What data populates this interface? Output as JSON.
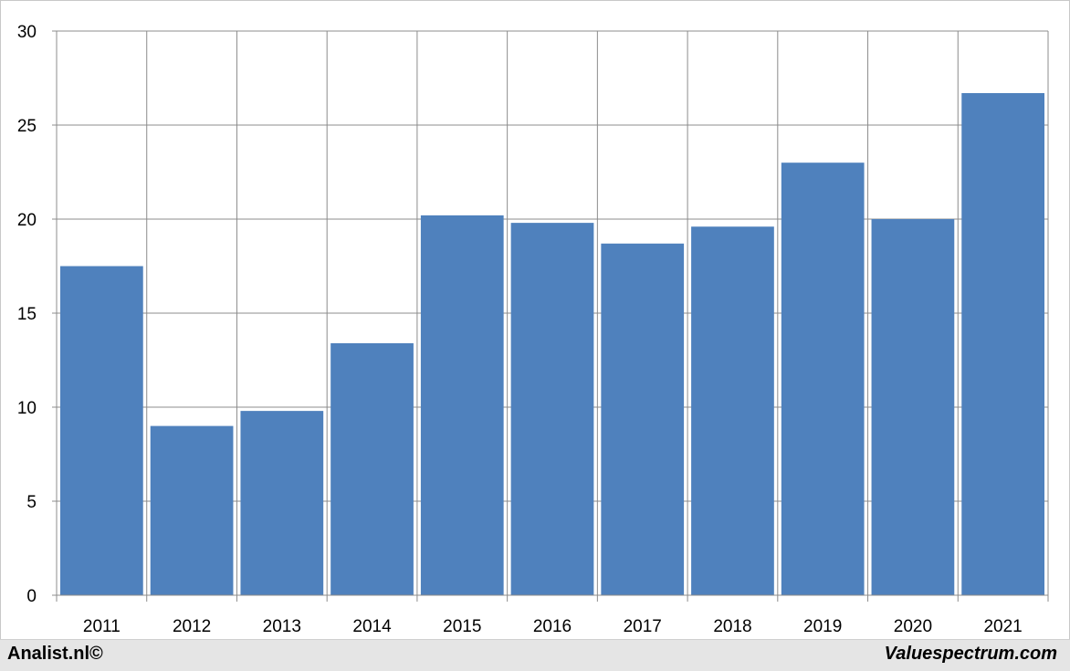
{
  "chart_data": {
    "type": "bar",
    "categories": [
      "2011",
      "2012",
      "2013",
      "2014",
      "2015",
      "2016",
      "2017",
      "2018",
      "2019",
      "2020",
      "2021"
    ],
    "values": [
      17.5,
      9.0,
      9.8,
      13.4,
      20.2,
      19.8,
      18.7,
      19.6,
      23.0,
      20.0,
      26.7
    ],
    "title": "",
    "xlabel": "",
    "ylabel": "",
    "ylim": [
      0,
      30
    ],
    "yticks": [
      "0",
      "5",
      "10",
      "15",
      "20",
      "25",
      "30"
    ],
    "grid": true,
    "bar_color": "#4f81bd",
    "grid_color": "#8c8c8c"
  },
  "footer": {
    "left_text": "Analist.nl©",
    "right_text": "Valuespectrum.com"
  }
}
